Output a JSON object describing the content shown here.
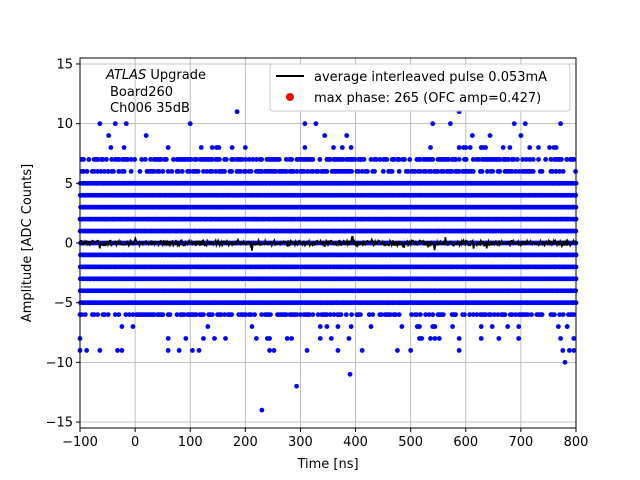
{
  "chart_data": {
    "type": "scatter",
    "xlabel": "Time [ns]",
    "ylabel": "Amplitude [ADC Counts]",
    "xlim": [
      -100,
      800
    ],
    "ylim": [
      -15.5,
      15.5
    ],
    "x_ticks": [
      -100,
      0,
      100,
      200,
      300,
      400,
      500,
      600,
      700,
      800
    ],
    "y_ticks": [
      -15,
      -10,
      -5,
      0,
      5,
      10,
      15
    ],
    "grid": true,
    "legend_position": "top-right",
    "annotation": {
      "line1_italic": "ATLAS",
      "line1_rest": " Upgrade",
      "line2": "Board260",
      "line3": "Ch006 35dB"
    },
    "legend": [
      {
        "label": "average interleaved pulse 0.053mA",
        "marker": "line",
        "color": "#000000"
      },
      {
        "label": "max phase: 265 (OFC amp=0.427)",
        "marker": "dot",
        "color": "#ff0000"
      }
    ],
    "scatter_series": {
      "name": "samples",
      "color": "#0000ff",
      "dense_levels": [
        -5,
        -4,
        -3,
        -2,
        -1,
        0,
        1,
        2,
        3,
        4,
        5
      ],
      "medium_levels": [
        6,
        7,
        -6
      ],
      "sparse_levels": [
        8,
        9,
        10,
        -7,
        -8,
        -9
      ],
      "outliers": [
        {
          "x": 185,
          "y": 11
        },
        {
          "x": 588,
          "y": 11
        },
        {
          "x": 230,
          "y": -14
        },
        {
          "x": 293,
          "y": -12
        },
        {
          "x": 390,
          "y": -11
        },
        {
          "x": 780,
          "y": -10
        }
      ]
    },
    "line_series": {
      "name": "average interleaved pulse 0.053mA",
      "color": "#000000",
      "x_start": -100,
      "x_end": 800,
      "baseline": 0
    },
    "max_phase": {
      "x": 265,
      "amplitude": 0.427,
      "color": "#ff0000"
    }
  }
}
